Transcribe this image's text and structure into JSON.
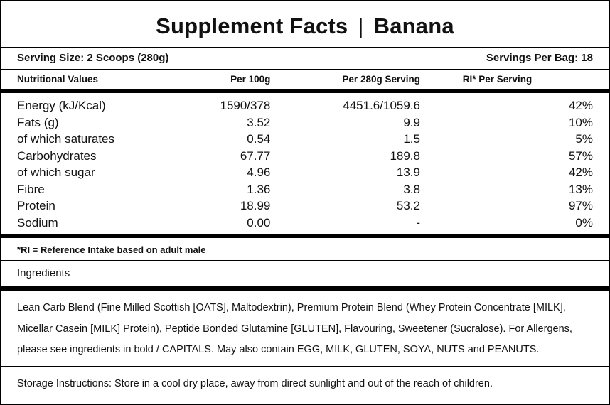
{
  "colors": {
    "background": "#ffffff",
    "text": "#111111",
    "rules": "#000000"
  },
  "title": {
    "main": "Supplement Facts",
    "separator": "|",
    "flavor": "Banana"
  },
  "serving": {
    "size": "Serving Size: 2 Scoops (280g)",
    "per_bag": "Servings Per Bag: 18"
  },
  "table": {
    "headers": [
      "Nutritional Values",
      "Per 100g",
      "Per 280g Serving",
      "RI* Per Serving"
    ],
    "rows": [
      {
        "name": "Energy (kJ/Kcal)",
        "per_100g": "1590/378",
        "per_serving": "4451.6/1059.6",
        "ri": "42%"
      },
      {
        "name": "Fats (g)",
        "per_100g": "3.52",
        "per_serving": "9.9",
        "ri": "10%"
      },
      {
        "name": "of which saturates",
        "per_100g": "0.54",
        "per_serving": "1.5",
        "ri": "5%"
      },
      {
        "name": "Carbohydrates",
        "per_100g": "67.77",
        "per_serving": "189.8",
        "ri": "57%"
      },
      {
        "name": "of which sugar",
        "per_100g": "4.96",
        "per_serving": "13.9",
        "ri": "42%"
      },
      {
        "name": "Fibre",
        "per_100g": "1.36",
        "per_serving": "3.8",
        "ri": "13%"
      },
      {
        "name": "Protein",
        "per_100g": "18.99",
        "per_serving": "53.2",
        "ri": "97%"
      },
      {
        "name": "Sodium",
        "per_100g": "0.00",
        "per_serving": "-",
        "ri": "0%"
      }
    ]
  },
  "footnote": "*RI = Reference Intake based on adult male",
  "ingredients": {
    "heading": "Ingredients",
    "text": "Lean Carb Blend (Fine Milled Scottish [OATS], Maltodextrin), Premium Protein Blend (Whey Protein Concentrate [MILK], Micellar Casein [MILK] Protein), Peptide Bonded Glutamine [GLUTEN], Flavouring,  Sweetener (Sucralose). For Allergens, please see ingredients in bold / CAPITALS. May also contain EGG, MILK, GLUTEN, SOYA, NUTS and PEANUTS."
  },
  "storage": "Storage Instructions: Store in a cool dry place, away from direct sunlight and out of the reach of children."
}
